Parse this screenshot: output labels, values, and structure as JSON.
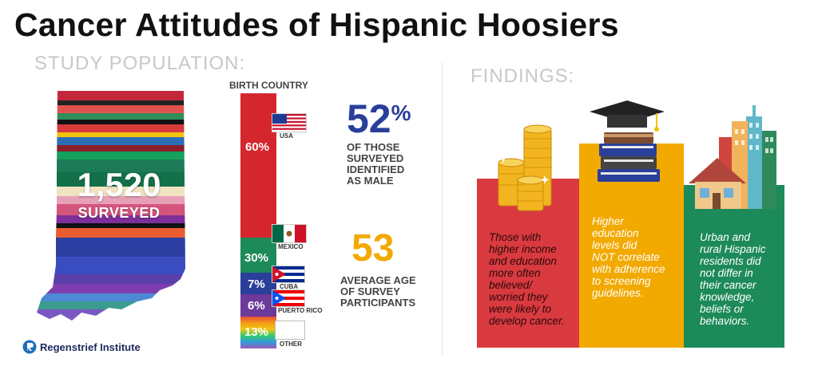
{
  "title": "Cancer Attitudes of Hispanic Hoosiers",
  "study_population_heading": "STUDY POPULATION:",
  "findings_heading": "FINDINGS:",
  "surveyed": {
    "count": "1,520",
    "label": "SURVEYED"
  },
  "birth_country": {
    "title": "BIRTH COUNTRY",
    "segments": [
      {
        "percent": "60%",
        "country": "USA",
        "color": "#d5262e"
      },
      {
        "percent": "30%",
        "country": "MEXICO",
        "color": "#1d8a5a"
      },
      {
        "percent": "7%",
        "country": "CUBA",
        "color": "#2a3f9a"
      },
      {
        "percent": "6%",
        "country": "PUERTO RICO",
        "color": "#6b3a9a"
      },
      {
        "percent": "13%",
        "country": "OTHER",
        "color": "rainbow"
      }
    ]
  },
  "stats": [
    {
      "value": "52",
      "suffix": "%",
      "text": [
        "OF THOSE",
        "SURVEYED",
        "IDENTIFIED",
        "AS MALE"
      ],
      "color": "#2a3f9a"
    },
    {
      "value": "53",
      "text": [
        "AVERAGE AGE",
        "OF SURVEY",
        "PARTICIPANTS"
      ],
      "color": "#f2a900"
    }
  ],
  "findings": [
    {
      "lines": [
        "Those with",
        "higher income",
        "and education",
        "more often",
        "believed/",
        "worried they",
        "were likely to",
        "develop cancer."
      ],
      "color": "#d93a40"
    },
    {
      "lines": [
        "Higher",
        "education",
        "levels did",
        "NOT correlate",
        "with adherence",
        "to screening",
        "guidelines."
      ],
      "color": "#f2a900"
    },
    {
      "lines": [
        "Urban and",
        "rural Hispanic",
        "residents did",
        "not differ in",
        "their cancer",
        "knowledge,",
        "beliefs or",
        "behaviors."
      ],
      "color": "#1d8a5a"
    }
  ],
  "logo": "Regenstrief Institute"
}
